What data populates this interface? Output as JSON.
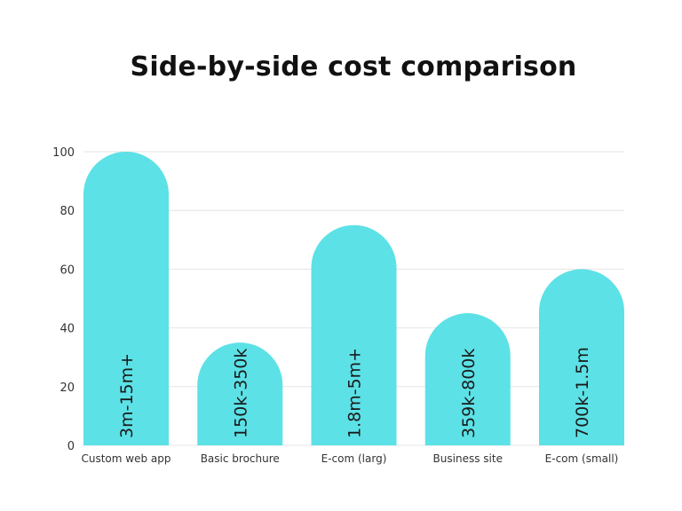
{
  "chart_data": {
    "type": "bar",
    "title": "Side-by-side cost comparison",
    "categories": [
      "Custom web app",
      "Basic brochure",
      "E-com (larg)",
      "Business site",
      "E-com (small)"
    ],
    "values": [
      100,
      35,
      75,
      45,
      60
    ],
    "data_labels": [
      "3m-15m+",
      "150k-350k",
      "1.8m-5m+",
      "359k-800k",
      "700k-1.5m"
    ],
    "bar_color": "#5ce1e6",
    "ylim": [
      0,
      100
    ],
    "yticks": [
      0,
      20,
      40,
      60,
      80,
      100
    ],
    "grid": true,
    "xlabel": "",
    "ylabel": ""
  }
}
